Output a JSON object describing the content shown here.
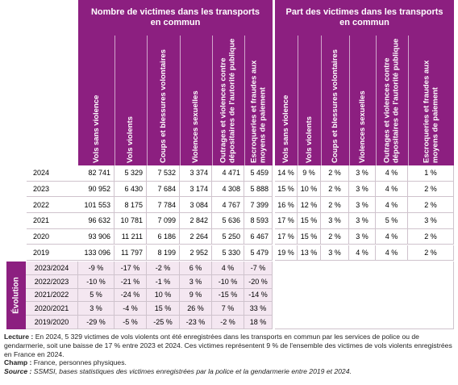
{
  "table": {
    "groups": [
      {
        "title": "Nombre de victimes dans les transports en commun",
        "columns": [
          "Vols sans violence",
          "Vols violents",
          "Coups et blessures volontaires",
          "Violences sexuelles",
          "Outrages et violences contre dépositaires de l'autorité publique",
          "Escroqueries et fraudes aux moyens de paiement"
        ]
      },
      {
        "title": "Part des victimes dans les transports en commun",
        "columns": [
          "Vols sans violence",
          "Vols violents",
          "Coups et blessures volontaires",
          "Violences sexuelles",
          "Outrages et violences contre dépositaires de l'autorité publique",
          "Escroqueries et fraudes aux moyens de paiement"
        ]
      }
    ],
    "rows": [
      {
        "label": "2024",
        "counts": [
          "82 741",
          "5 329",
          "7 532",
          "3 374",
          "4 471",
          "5 459"
        ],
        "shares": [
          "14 %",
          "9 %",
          "2 %",
          "3 %",
          "4 %",
          "1 %"
        ]
      },
      {
        "label": "2023",
        "counts": [
          "90 952",
          "6 430",
          "7 684",
          "3 174",
          "4 308",
          "5 888"
        ],
        "shares": [
          "15 %",
          "10 %",
          "2 %",
          "3 %",
          "4 %",
          "2 %"
        ]
      },
      {
        "label": "2022",
        "counts": [
          "101 553",
          "8 175",
          "7 784",
          "3 084",
          "4 767",
          "7 399"
        ],
        "shares": [
          "16 %",
          "12 %",
          "2 %",
          "3 %",
          "4 %",
          "2 %"
        ]
      },
      {
        "label": "2021",
        "counts": [
          "96 632",
          "10 781",
          "7 099",
          "2 842",
          "5 636",
          "8 593"
        ],
        "shares": [
          "17 %",
          "15 %",
          "3 %",
          "3 %",
          "5 %",
          "3 %"
        ]
      },
      {
        "label": "2020",
        "counts": [
          "93 906",
          "11 211",
          "6 186",
          "2 264",
          "5 250",
          "6 467"
        ],
        "shares": [
          "17 %",
          "15 %",
          "2 %",
          "3 %",
          "4 %",
          "2 %"
        ]
      },
      {
        "label": "2019",
        "counts": [
          "133 096",
          "11 797",
          "8 199",
          "2 952",
          "5 330",
          "5 479"
        ],
        "shares": [
          "19 %",
          "13 %",
          "3 %",
          "4 %",
          "4 %",
          "2 %"
        ]
      }
    ],
    "evolution": {
      "label": "Évolution",
      "rows": [
        {
          "label": "2023/2024",
          "values": [
            "-9 %",
            "-17 %",
            "-2 %",
            "6 %",
            "4 %",
            "-7 %"
          ]
        },
        {
          "label": "2022/2023",
          "values": [
            "-10 %",
            "-21 %",
            "-1 %",
            "3 %",
            "-10 %",
            "-20 %"
          ]
        },
        {
          "label": "2021/2022",
          "values": [
            "5 %",
            "-24 %",
            "10 %",
            "9 %",
            "-15 %",
            "-14 %"
          ]
        },
        {
          "label": "2020/2021",
          "values": [
            "3 %",
            "-4 %",
            "15 %",
            "26 %",
            "7 %",
            "33 %"
          ]
        },
        {
          "label": "2019/2020",
          "values": [
            "-29 %",
            "-5 %",
            "-25 %",
            "-23 %",
            "-2 %",
            "18 %"
          ]
        }
      ]
    }
  },
  "notes": {
    "reading": {
      "label": "Lecture :",
      "text": "En 2024, 5 329 victimes de vols violents ont été enregistrées dans les transports en commun par les services de police ou de gendarmerie, soit une baisse de 17 % entre 2023 et 2024. Ces victimes représentent 9 % de l'ensemble des victimes de vols violents enregistrées en France en 2024."
    },
    "scope": {
      "label": "Champ :",
      "text": "France, personnes physiques."
    },
    "source": {
      "label": "Source :",
      "text": "SSMSI, bases statistiques des victimes enregistrées par la police et la gendarmerie entre 2019 et 2024."
    }
  }
}
